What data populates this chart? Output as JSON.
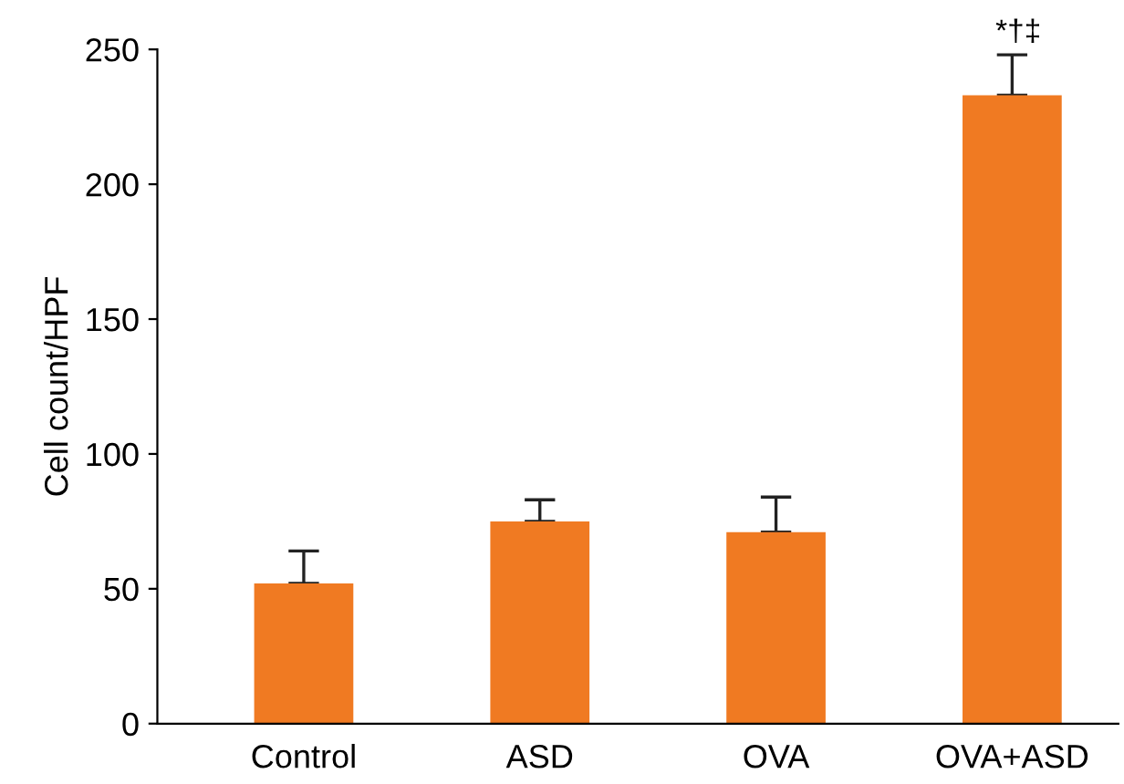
{
  "chart_data": {
    "type": "bar",
    "ylabel": "Cell count/HPF",
    "categories": [
      "Control",
      "ASD",
      "OVA",
      "OVA+ASD"
    ],
    "values": [
      52,
      75,
      71,
      233
    ],
    "errors": [
      [
        52,
        64
      ],
      [
        75,
        83
      ],
      [
        71,
        84
      ],
      [
        233,
        248
      ]
    ],
    "color": "#f07a22",
    "ylim": [
      0,
      250
    ],
    "yticks": [
      0,
      50,
      100,
      150,
      200,
      250
    ],
    "grid": false,
    "annotations": [
      "*†‡"
    ]
  }
}
